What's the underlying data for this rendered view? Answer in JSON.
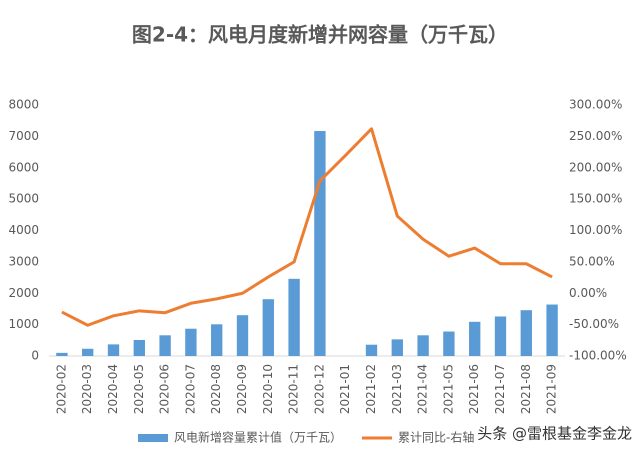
{
  "chart_data": {
    "type": "bar-line",
    "title": "图2-4：风电月度新增并网容量（万千瓦）",
    "categories": [
      "2020-02",
      "2020-03",
      "2020-04",
      "2020-05",
      "2020-06",
      "2020-07",
      "2020-08",
      "2020-09",
      "2020-10",
      "2020-11",
      "2020-12",
      "2021-01",
      "2021-02",
      "2021-03",
      "2021-04",
      "2021-05",
      "2021-06",
      "2021-07",
      "2021-08",
      "2021-09"
    ],
    "series": [
      {
        "name": "风电新增容量累计值（万千瓦）",
        "type": "bar",
        "color": "#5b9bd5",
        "values": [
          100,
          230,
          370,
          510,
          660,
          870,
          1010,
          1300,
          1810,
          2460,
          7170,
          null,
          360,
          530,
          660,
          780,
          1090,
          1260,
          1460,
          1640
        ]
      },
      {
        "name": "累计同比-右轴",
        "type": "line",
        "axis": "y2",
        "color": "#ed7d31",
        "values": [
          -30,
          -51,
          -36,
          -28,
          -31,
          -16,
          -9,
          0,
          26,
          50,
          179,
          220,
          262,
          123,
          86,
          59,
          72,
          47,
          47,
          26
        ]
      }
    ],
    "ylim": [
      0,
      8000
    ],
    "yticks": [
      0,
      1000,
      2000,
      3000,
      4000,
      5000,
      6000,
      7000,
      8000
    ],
    "y2lim": [
      -100,
      300
    ],
    "y2ticks": [
      {
        "value": -100,
        "label": "-100.00%"
      },
      {
        "value": -50,
        "label": "-50.00%"
      },
      {
        "value": 0,
        "label": "0.00%"
      },
      {
        "value": 50,
        "label": "50.00%"
      },
      {
        "value": 100,
        "label": "100.00%"
      },
      {
        "value": 150,
        "label": "150.00%"
      },
      {
        "value": 200,
        "label": "200.00%"
      },
      {
        "value": 250,
        "label": "250.00%"
      },
      {
        "value": 300,
        "label": "300.00%"
      }
    ],
    "legend": "bottom",
    "watermark": "头条 @雷根基金李金龙"
  }
}
